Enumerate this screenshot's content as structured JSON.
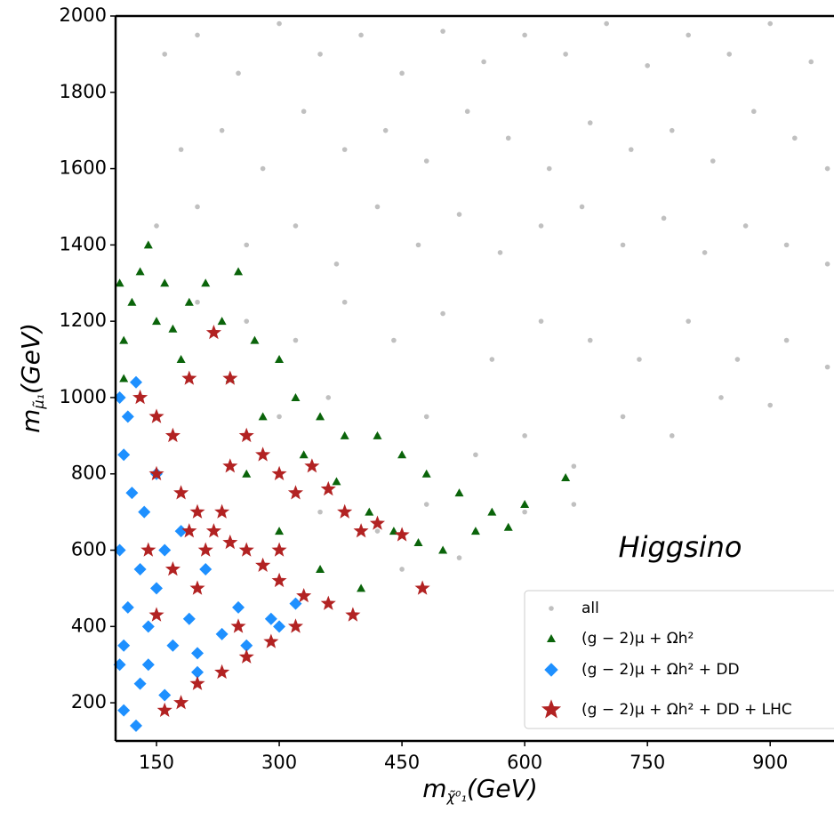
{
  "chart_data": {
    "type": "scatter",
    "annotation": "Higgsino",
    "x_label": {
      "base": "m",
      "sub": "χ̃⁰₁",
      "unit": "(GeV)"
    },
    "y_label": {
      "base": "m",
      "sub": "μ̃₁",
      "unit": "(GeV)"
    },
    "xlim": [
      100,
      978
    ],
    "ylim": [
      100,
      2000
    ],
    "xticks": [
      150,
      300,
      450,
      600,
      750,
      900
    ],
    "yticks": [
      200,
      400,
      600,
      800,
      1000,
      1200,
      1400,
      1600,
      1800,
      2000
    ],
    "legend": "lower right",
    "series": [
      {
        "name": "all",
        "color": "#c0c0c0",
        "marker": "circle",
        "x": [
          160,
          200,
          250,
          300,
          350,
          400,
          450,
          500,
          550,
          600,
          650,
          700,
          750,
          800,
          850,
          900,
          950,
          180,
          230,
          280,
          330,
          380,
          430,
          480,
          530,
          580,
          630,
          680,
          730,
          780,
          830,
          880,
          930,
          970,
          150,
          200,
          260,
          320,
          370,
          420,
          470,
          520,
          570,
          620,
          670,
          720,
          770,
          820,
          870,
          920,
          970,
          200,
          260,
          320,
          380,
          440,
          500,
          560,
          620,
          680,
          740,
          800,
          860,
          920,
          970,
          300,
          360,
          420,
          480,
          540,
          600,
          660,
          720,
          780,
          840,
          900,
          350,
          420,
          480,
          540,
          600,
          660,
          450,
          520
        ],
        "y": [
          1900,
          1950,
          1850,
          1980,
          1900,
          1950,
          1850,
          1960,
          1880,
          1950,
          1900,
          1980,
          1870,
          1950,
          1900,
          1980,
          1880,
          1650,
          1700,
          1600,
          1750,
          1650,
          1700,
          1620,
          1750,
          1680,
          1600,
          1720,
          1650,
          1700,
          1620,
          1750,
          1680,
          1600,
          1450,
          1500,
          1400,
          1450,
          1350,
          1500,
          1400,
          1480,
          1380,
          1450,
          1500,
          1400,
          1470,
          1380,
          1450,
          1400,
          1350,
          1250,
          1200,
          1150,
          1250,
          1150,
          1220,
          1100,
          1200,
          1150,
          1100,
          1200,
          1100,
          1150,
          1080,
          950,
          1000,
          900,
          950,
          850,
          900,
          820,
          950,
          900,
          1000,
          980,
          700,
          650,
          720,
          650,
          700,
          720,
          550,
          580
        ]
      },
      {
        "name": "(g − 2)μ + Ωh²",
        "color": "#0a640a",
        "marker": "triangle",
        "x": [
          105,
          110,
          120,
          130,
          140,
          150,
          160,
          170,
          190,
          210,
          230,
          250,
          270,
          300,
          320,
          350,
          380,
          420,
          450,
          480,
          520,
          560,
          600,
          650,
          110,
          180,
          240,
          280,
          330,
          370,
          410,
          440,
          470,
          500,
          540,
          580,
          300,
          350,
          400,
          260
        ],
        "y": [
          1300,
          1150,
          1250,
          1330,
          1400,
          1200,
          1300,
          1180,
          1250,
          1300,
          1200,
          1330,
          1150,
          1100,
          1000,
          950,
          900,
          900,
          850,
          800,
          750,
          700,
          720,
          790,
          1050,
          1100,
          1050,
          950,
          850,
          780,
          700,
          650,
          620,
          600,
          650,
          660,
          650,
          550,
          500,
          800
        ]
      },
      {
        "name": "(g − 2)μ + Ωh² + DD",
        "color": "#1e90ff",
        "marker": "diamond",
        "x": [
          105,
          115,
          125,
          110,
          120,
          135,
          105,
          130,
          150,
          115,
          140,
          170,
          200,
          105,
          130,
          160,
          110,
          125,
          190,
          230,
          260,
          290,
          320,
          150,
          180,
          210,
          250,
          110,
          140,
          160,
          200,
          300
        ],
        "y": [
          1000,
          950,
          1040,
          850,
          750,
          700,
          600,
          550,
          500,
          450,
          400,
          350,
          330,
          300,
          250,
          220,
          180,
          140,
          420,
          380,
          350,
          420,
          460,
          800,
          650,
          550,
          450,
          350,
          300,
          600,
          280,
          400
        ]
      },
      {
        "name": "(g − 2)μ + Ωh² + DD + LHC",
        "color": "#b22222",
        "marker": "star",
        "x": [
          130,
          150,
          170,
          190,
          220,
          240,
          260,
          280,
          300,
          320,
          340,
          360,
          380,
          400,
          420,
          450,
          475,
          150,
          180,
          200,
          220,
          240,
          260,
          280,
          300,
          330,
          360,
          390,
          160,
          180,
          200,
          230,
          260,
          290,
          320,
          140,
          170,
          200,
          250,
          210,
          190,
          230,
          150,
          240,
          300
        ],
        "y": [
          1000,
          950,
          900,
          1050,
          1170,
          1050,
          900,
          850,
          800,
          750,
          820,
          760,
          700,
          650,
          670,
          640,
          500,
          800,
          750,
          700,
          650,
          620,
          600,
          560,
          520,
          480,
          460,
          430,
          180,
          200,
          250,
          280,
          320,
          360,
          400,
          600,
          550,
          500,
          400,
          600,
          650,
          700,
          430,
          820,
          600
        ]
      }
    ]
  }
}
